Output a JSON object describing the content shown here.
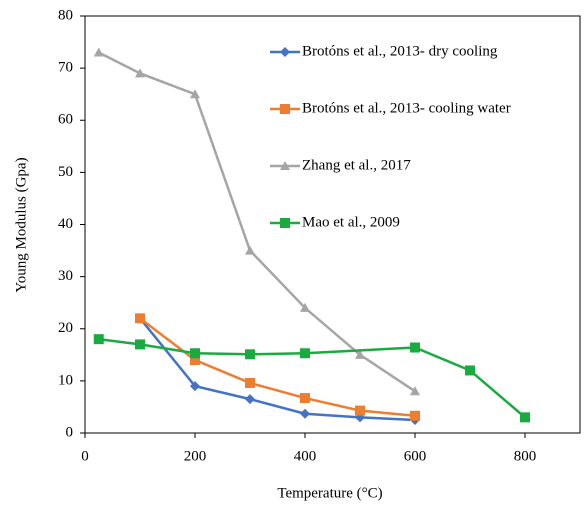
{
  "chart_data": {
    "type": "line",
    "xlabel": "Temperature (°C)",
    "ylabel": "Young Modulus (Gpa)",
    "xlim": [
      0,
      900
    ],
    "xticks": [
      0,
      200,
      400,
      600,
      800
    ],
    "ylim": [
      0,
      80
    ],
    "yticks": [
      0,
      10,
      20,
      30,
      40,
      50,
      60,
      70,
      80
    ],
    "legend": "upper right",
    "grid": false,
    "series": [
      {
        "name": "Brotóns et al., 2013- dry cooling",
        "color": "#4472c4",
        "marker": "diamond",
        "x": [
          100,
          200,
          300,
          400,
          500,
          600
        ],
        "values": [
          22,
          9,
          6.5,
          3.7,
          3,
          2.5
        ]
      },
      {
        "name": "Brotóns et al., 2013- cooling water",
        "color": "#ed7d31",
        "marker": "square",
        "x": [
          100,
          200,
          300,
          400,
          500,
          600
        ],
        "values": [
          22,
          14,
          9.6,
          6.7,
          4.3,
          3.3
        ]
      },
      {
        "name": "Zhang et al., 2017",
        "color": "#a5a5a5",
        "marker": "triangle",
        "x": [
          25,
          100,
          200,
          300,
          400,
          500,
          600
        ],
        "values": [
          73,
          69,
          65,
          35,
          24,
          15,
          8
        ]
      },
      {
        "name": "Mao et al., 2009",
        "color": "#1aab40",
        "marker": "square",
        "x": [
          25,
          100,
          200,
          300,
          400,
          600,
          700,
          800
        ],
        "values": [
          18,
          17,
          15.3,
          15.1,
          15.3,
          16.4,
          12,
          3
        ]
      }
    ]
  }
}
